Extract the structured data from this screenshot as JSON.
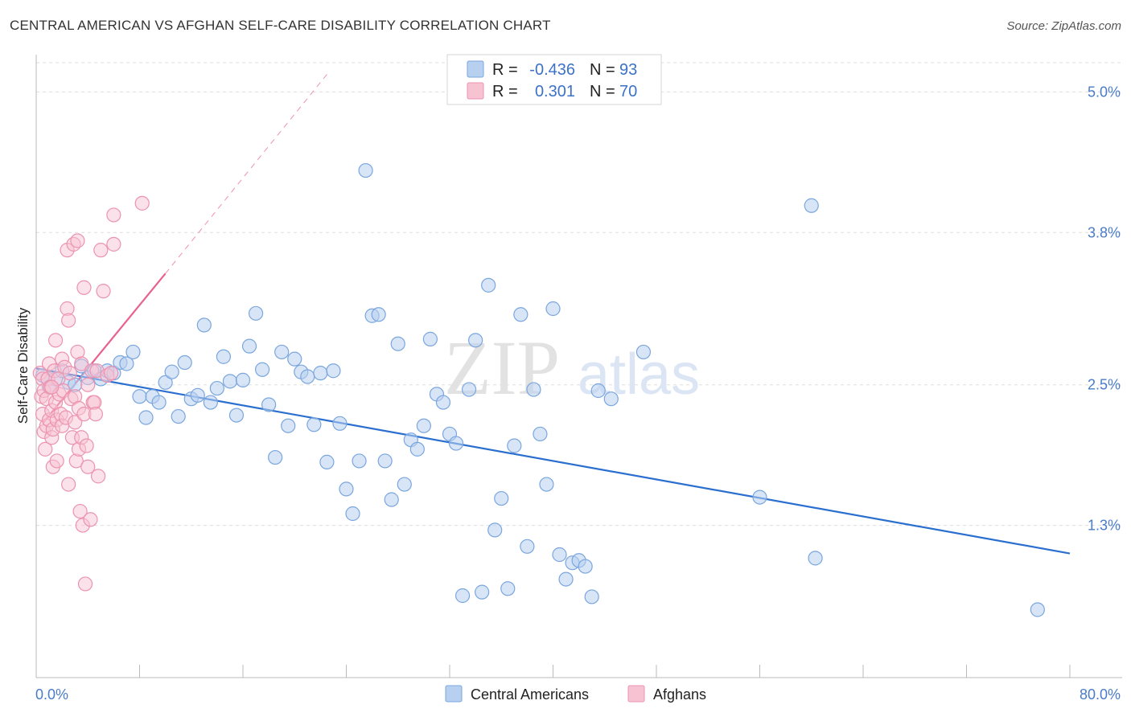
{
  "title": "CENTRAL AMERICAN VS AFGHAN SELF-CARE DISABILITY CORRELATION CHART",
  "source": "Source: ZipAtlas.com",
  "watermark": {
    "zip": "ZIP",
    "atlas": "atlas"
  },
  "colors": {
    "blue_fill": "#b8d0f0",
    "blue_stroke": "#7aa6de",
    "blue_line": "#2a6fcf",
    "pink_fill": "#f7c3d3",
    "pink_stroke": "#ec93b0",
    "pink_line": "#e8628f",
    "grid": "#dddddd",
    "axis_text": "#4a7cc9"
  },
  "legend": {
    "row1": {
      "r_label": "R =",
      "r_value": "-0.436",
      "n_label": "N =",
      "n_value": "93"
    },
    "row2": {
      "r_label": "R =",
      "r_value": "0.301",
      "n_label": "N =",
      "n_value": "70"
    }
  },
  "bottom_legend": {
    "blue": "Central Americans",
    "pink": "Afghans"
  },
  "chart_data": {
    "type": "scatter",
    "title": "CENTRAL AMERICAN VS AFGHAN SELF-CARE DISABILITY CORRELATION CHART",
    "xlabel": "",
    "ylabel": "Self-Care Disability",
    "xlim": [
      0,
      80
    ],
    "ylim": [
      0,
      5.25
    ],
    "x_tick_labels": [
      "0.0%",
      "80.0%"
    ],
    "y_ticks": [
      1.3,
      2.5,
      3.8,
      5.0
    ],
    "y_tick_labels": [
      "1.3%",
      "2.5%",
      "3.8%",
      "5.0%"
    ],
    "series": [
      {
        "name": "Central Americans",
        "color": "#b8d0f0",
        "r": -0.436,
        "n": 93,
        "trend": {
          "x": [
            0,
            80
          ],
          "y": [
            2.64,
            1.06
          ]
        },
        "points": [
          [
            0.5,
            2.58
          ],
          [
            1.0,
            2.48
          ],
          [
            1.5,
            2.55
          ],
          [
            2.0,
            2.62
          ],
          [
            2.5,
            2.52
          ],
          [
            3.0,
            2.5
          ],
          [
            3.5,
            2.66
          ],
          [
            4.0,
            2.56
          ],
          [
            4.5,
            2.62
          ],
          [
            5.0,
            2.55
          ],
          [
            5.5,
            2.62
          ],
          [
            6.0,
            2.6
          ],
          [
            6.5,
            2.69
          ],
          [
            7.0,
            2.68
          ],
          [
            7.5,
            2.78
          ],
          [
            8.0,
            2.4
          ],
          [
            8.5,
            2.22
          ],
          [
            9.0,
            2.4
          ],
          [
            9.5,
            2.35
          ],
          [
            10.0,
            2.52
          ],
          [
            10.5,
            2.61
          ],
          [
            11.0,
            2.23
          ],
          [
            11.5,
            2.69
          ],
          [
            12.0,
            2.38
          ],
          [
            12.5,
            2.41
          ],
          [
            13.0,
            3.01
          ],
          [
            13.5,
            2.35
          ],
          [
            14.0,
            2.47
          ],
          [
            14.5,
            2.74
          ],
          [
            15.0,
            2.53
          ],
          [
            15.5,
            2.24
          ],
          [
            16.0,
            2.54
          ],
          [
            16.5,
            2.83
          ],
          [
            17.0,
            3.11
          ],
          [
            17.5,
            2.63
          ],
          [
            18.0,
            2.33
          ],
          [
            18.5,
            1.88
          ],
          [
            19.0,
            2.78
          ],
          [
            19.5,
            2.15
          ],
          [
            20.0,
            2.72
          ],
          [
            20.5,
            2.61
          ],
          [
            21.0,
            2.57
          ],
          [
            21.5,
            2.16
          ],
          [
            22.0,
            2.6
          ],
          [
            22.5,
            1.84
          ],
          [
            23.0,
            2.62
          ],
          [
            23.5,
            2.17
          ],
          [
            24.0,
            1.61
          ],
          [
            24.5,
            1.4
          ],
          [
            25.0,
            1.85
          ],
          [
            25.5,
            4.33
          ],
          [
            26.0,
            3.09
          ],
          [
            26.5,
            3.1
          ],
          [
            27.0,
            1.85
          ],
          [
            27.5,
            1.52
          ],
          [
            28.0,
            2.85
          ],
          [
            28.5,
            1.65
          ],
          [
            29.0,
            2.03
          ],
          [
            29.5,
            1.95
          ],
          [
            30.0,
            2.15
          ],
          [
            30.5,
            2.89
          ],
          [
            31.0,
            2.42
          ],
          [
            31.5,
            2.35
          ],
          [
            32.0,
            2.08
          ],
          [
            32.5,
            2.0
          ],
          [
            33.0,
            0.7
          ],
          [
            33.5,
            2.46
          ],
          [
            34.0,
            2.88
          ],
          [
            34.5,
            0.73
          ],
          [
            35.0,
            3.35
          ],
          [
            35.5,
            1.26
          ],
          [
            36.0,
            1.53
          ],
          [
            36.5,
            0.76
          ],
          [
            37.0,
            1.98
          ],
          [
            37.5,
            3.1
          ],
          [
            38.0,
            1.12
          ],
          [
            38.5,
            2.46
          ],
          [
            39.0,
            2.08
          ],
          [
            39.5,
            1.65
          ],
          [
            40.0,
            3.15
          ],
          [
            40.5,
            1.05
          ],
          [
            41.0,
            0.84
          ],
          [
            41.5,
            0.98
          ],
          [
            42.0,
            1.0
          ],
          [
            42.5,
            0.95
          ],
          [
            43.0,
            0.69
          ],
          [
            43.5,
            2.45
          ],
          [
            44.5,
            2.38
          ],
          [
            47.0,
            2.78
          ],
          [
            56.0,
            1.54
          ],
          [
            60.0,
            4.03
          ],
          [
            60.3,
            1.02
          ],
          [
            77.5,
            0.58
          ]
        ]
      },
      {
        "name": "Afghans",
        "color": "#f7c3d3",
        "r": 0.301,
        "n": 70,
        "trend": {
          "x": [
            0.5,
            10.0
          ],
          "y": [
            2.17,
            3.45
          ]
        },
        "trend_extension": {
          "x": [
            10.0,
            22.5
          ],
          "y": [
            3.45,
            5.15
          ]
        },
        "points": [
          [
            0.3,
            2.6
          ],
          [
            0.4,
            2.4
          ],
          [
            0.5,
            2.55
          ],
          [
            0.5,
            2.25
          ],
          [
            0.6,
            2.45
          ],
          [
            0.6,
            2.1
          ],
          [
            0.7,
            1.95
          ],
          [
            0.8,
            2.15
          ],
          [
            0.8,
            2.38
          ],
          [
            0.9,
            2.55
          ],
          [
            1.0,
            2.68
          ],
          [
            1.0,
            2.2
          ],
          [
            1.1,
            2.48
          ],
          [
            1.2,
            2.05
          ],
          [
            1.2,
            2.28
          ],
          [
            1.3,
            1.8
          ],
          [
            1.3,
            2.12
          ],
          [
            1.4,
            2.62
          ],
          [
            1.5,
            2.35
          ],
          [
            1.5,
            2.88
          ],
          [
            1.6,
            1.85
          ],
          [
            1.6,
            2.2
          ],
          [
            1.7,
            2.55
          ],
          [
            1.8,
            2.42
          ],
          [
            1.9,
            2.25
          ],
          [
            2.0,
            2.15
          ],
          [
            2.0,
            2.72
          ],
          [
            2.1,
            2.45
          ],
          [
            2.2,
            2.65
          ],
          [
            2.3,
            2.22
          ],
          [
            2.4,
            3.15
          ],
          [
            2.4,
            3.65
          ],
          [
            2.5,
            3.05
          ],
          [
            2.5,
            1.65
          ],
          [
            2.6,
            2.6
          ],
          [
            2.7,
            2.38
          ],
          [
            2.8,
            2.05
          ],
          [
            2.9,
            3.7
          ],
          [
            3.0,
            2.18
          ],
          [
            3.0,
            2.4
          ],
          [
            3.1,
            1.85
          ],
          [
            3.2,
            2.78
          ],
          [
            3.2,
            3.73
          ],
          [
            3.3,
            1.95
          ],
          [
            3.3,
            2.3
          ],
          [
            3.4,
            1.42
          ],
          [
            3.5,
            2.05
          ],
          [
            3.5,
            2.68
          ],
          [
            3.6,
            1.3
          ],
          [
            3.7,
            3.33
          ],
          [
            3.7,
            2.25
          ],
          [
            3.8,
            0.8
          ],
          [
            3.9,
            1.98
          ],
          [
            4.0,
            2.5
          ],
          [
            4.0,
            1.8
          ],
          [
            4.2,
            1.35
          ],
          [
            4.3,
            2.62
          ],
          [
            4.4,
            2.35
          ],
          [
            4.5,
            2.35
          ],
          [
            4.6,
            2.25
          ],
          [
            4.7,
            2.62
          ],
          [
            4.8,
            1.72
          ],
          [
            5.0,
            3.65
          ],
          [
            5.2,
            3.3
          ],
          [
            5.5,
            2.58
          ],
          [
            5.8,
            2.6
          ],
          [
            6.0,
            3.7
          ],
          [
            6.0,
            3.95
          ],
          [
            8.2,
            4.05
          ],
          [
            1.2,
            2.48
          ]
        ]
      }
    ]
  }
}
